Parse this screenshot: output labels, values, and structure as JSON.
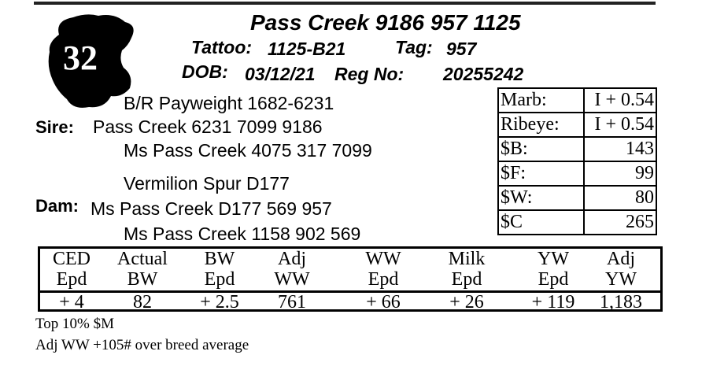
{
  "lot_number": "32",
  "animal_name": "Pass Creek 9186 957 1125",
  "tattoo_label": "Tattoo:",
  "tattoo": "1125-B21",
  "tag_label": "Tag:",
  "tag": "957",
  "dob_label": "DOB:",
  "dob": "03/12/21",
  "reg_label": "Reg No:",
  "reg_no": "20255242",
  "sire_label": "Sire:",
  "sire": {
    "sire": "B/R Payweight 1682-6231",
    "name": "Pass Creek 6231 7099 9186",
    "dam": "Ms Pass Creek 4075 317 7099"
  },
  "dam_label": "Dam:",
  "dam": {
    "sire": "Vermilion Spur D177",
    "name": "Ms Pass Creek D177 569 957",
    "dam": "Ms Pass Creek 1158 902 569"
  },
  "stats": [
    {
      "label": "Marb:",
      "value": "I + 0.54"
    },
    {
      "label": "Ribeye:",
      "value": "I + 0.54"
    },
    {
      "label": "$B:",
      "value": "143"
    },
    {
      "label": "$F:",
      "value": "99"
    },
    {
      "label": "$W:",
      "value": "80"
    },
    {
      "label": "$C",
      "value": "265"
    }
  ],
  "epd": [
    {
      "h1": "CED",
      "h2": "Epd",
      "value": "+ 4"
    },
    {
      "h1": "Actual",
      "h2": "BW",
      "value": "82"
    },
    {
      "h1": "BW",
      "h2": "Epd",
      "value": "+ 2.5"
    },
    {
      "h1": "Adj",
      "h2": "WW",
      "value": "761"
    },
    {
      "h1": "WW",
      "h2": "Epd",
      "value": "+ 66"
    },
    {
      "h1": "Milk",
      "h2": "Epd",
      "value": "+ 26"
    },
    {
      "h1": "YW",
      "h2": "Epd",
      "value": "+ 119"
    },
    {
      "h1": "Adj",
      "h2": "YW",
      "value": "1,183"
    }
  ],
  "notes": [
    "Top 10% $M",
    "Adj WW +105# over breed average"
  ]
}
